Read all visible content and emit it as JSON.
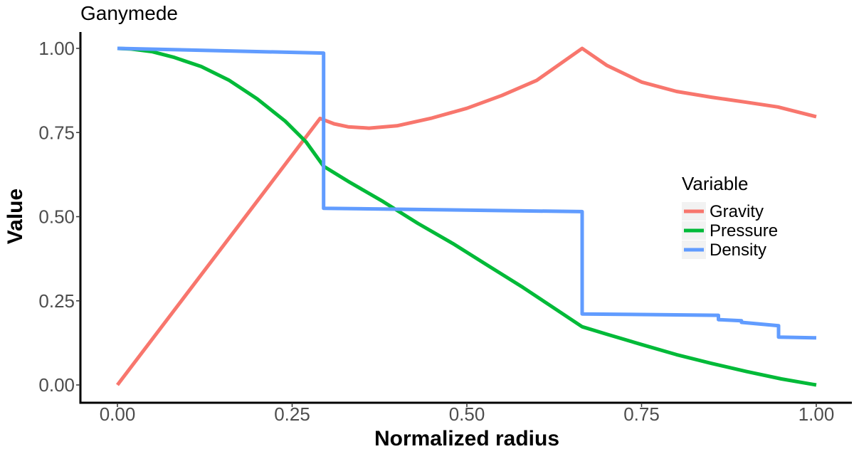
{
  "chart_data": {
    "type": "line",
    "title": "Ganymede",
    "xlabel": "Normalized radius",
    "ylabel": "Value",
    "xlim": [
      0,
      1
    ],
    "ylim": [
      0,
      1
    ],
    "x_ticks": [
      "0.00",
      "0.25",
      "0.50",
      "0.75",
      "1.00"
    ],
    "y_ticks": [
      "0.00",
      "0.25",
      "0.50",
      "0.75",
      "1.00"
    ],
    "grid": false,
    "legend": {
      "title": "Variable",
      "position": "right"
    },
    "series": [
      {
        "name": "Gravity",
        "color": "#f8766d",
        "x": [
          0.0,
          0.29,
          0.31,
          0.33,
          0.36,
          0.4,
          0.45,
          0.5,
          0.55,
          0.6,
          0.665,
          0.7,
          0.75,
          0.8,
          0.85,
          0.9,
          0.945,
          1.0
        ],
        "y": [
          0.0,
          0.792,
          0.776,
          0.767,
          0.763,
          0.77,
          0.793,
          0.822,
          0.86,
          0.905,
          1.0,
          0.95,
          0.9,
          0.872,
          0.855,
          0.84,
          0.826,
          0.797
        ]
      },
      {
        "name": "Pressure",
        "color": "#00ba38",
        "x": [
          0.0,
          0.02,
          0.05,
          0.08,
          0.12,
          0.16,
          0.2,
          0.24,
          0.27,
          0.295,
          0.33,
          0.38,
          0.43,
          0.48,
          0.53,
          0.58,
          0.62,
          0.665,
          0.7,
          0.75,
          0.8,
          0.85,
          0.9,
          0.95,
          1.0
        ],
        "y": [
          1.0,
          0.998,
          0.99,
          0.974,
          0.946,
          0.905,
          0.85,
          0.784,
          0.722,
          0.65,
          0.605,
          0.545,
          0.48,
          0.42,
          0.355,
          0.29,
          0.235,
          0.173,
          0.151,
          0.12,
          0.09,
          0.064,
          0.04,
          0.018,
          0.0
        ]
      },
      {
        "name": "Density",
        "color": "#619cff",
        "x": [
          0.0,
          0.295,
          0.295,
          0.665,
          0.665,
          0.86,
          0.86,
          0.893,
          0.893,
          0.946,
          0.946,
          1.0
        ],
        "y": [
          1.0,
          0.986,
          0.525,
          0.515,
          0.211,
          0.207,
          0.194,
          0.191,
          0.186,
          0.176,
          0.142,
          0.14
        ]
      }
    ]
  }
}
